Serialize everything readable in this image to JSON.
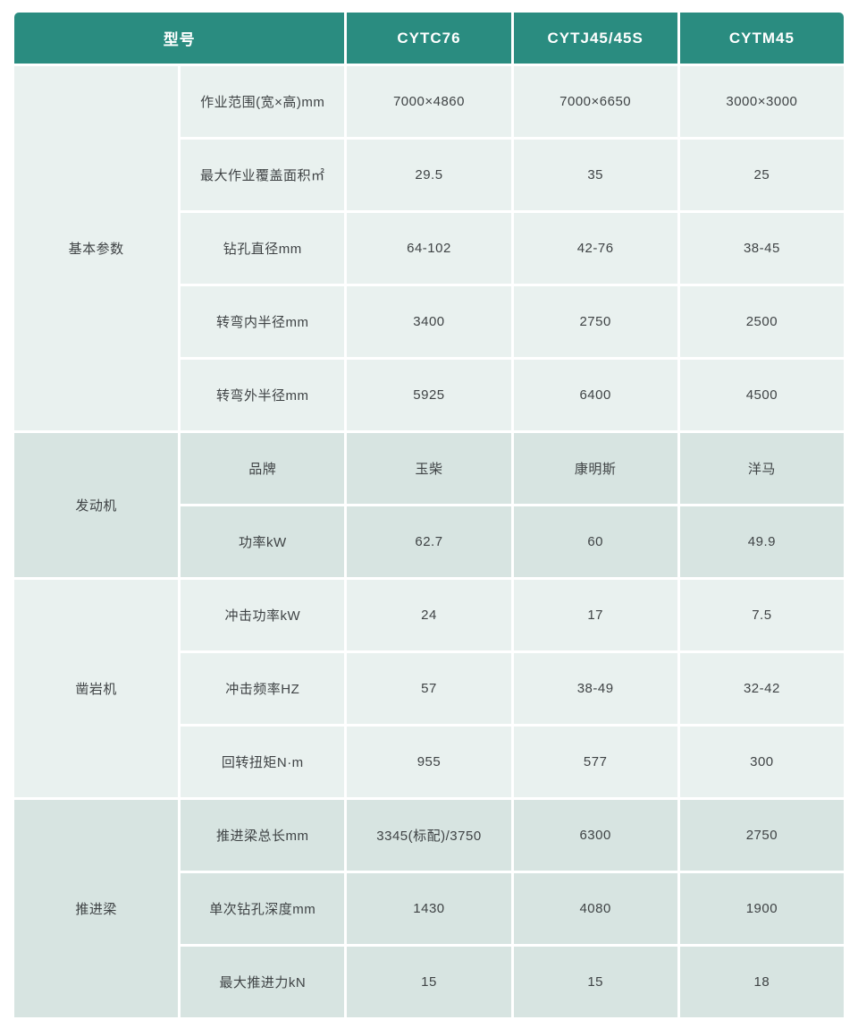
{
  "chart_data": {
    "type": "table",
    "title": "型号",
    "header": {
      "model_label": "型号",
      "models": [
        "CYTC76",
        "CYTJ45/45S",
        "CYTM45"
      ]
    },
    "sections": [
      {
        "category": "基本参数",
        "rows": [
          {
            "param": "作业范围(宽×高)mm",
            "values": [
              "7000×4860",
              "7000×6650",
              "3000×3000"
            ]
          },
          {
            "param": "最大作业覆盖面积㎡",
            "values": [
              "29.5",
              "35",
              "25"
            ]
          },
          {
            "param": "钻孔直径mm",
            "values": [
              "64-102",
              "42-76",
              "38-45"
            ]
          },
          {
            "param": "转弯内半径mm",
            "values": [
              "3400",
              "2750",
              "2500"
            ]
          },
          {
            "param": "转弯外半径mm",
            "values": [
              "5925",
              "6400",
              "4500"
            ]
          }
        ]
      },
      {
        "category": "发动机",
        "rows": [
          {
            "param": "品牌",
            "values": [
              "玉柴",
              "康明斯",
              "洋马"
            ]
          },
          {
            "param": "功率kW",
            "values": [
              "62.7",
              "60",
              "49.9"
            ]
          }
        ]
      },
      {
        "category": "凿岩机",
        "rows": [
          {
            "param": "冲击功率kW",
            "values": [
              "24",
              "17",
              "7.5"
            ]
          },
          {
            "param": "冲击频率HZ",
            "values": [
              "57",
              "38-49",
              "32-42"
            ]
          },
          {
            "param": "回转扭矩N·m",
            "values": [
              "955",
              "577",
              "300"
            ]
          }
        ]
      },
      {
        "category": "推进梁",
        "rows": [
          {
            "param": "推进梁总长mm",
            "values": [
              "3345(标配)/3750",
              "6300",
              "2750"
            ]
          },
          {
            "param": "单次钻孔深度mm",
            "values": [
              "1430",
              "4080",
              "1900"
            ]
          },
          {
            "param": "最大推进力kN",
            "values": [
              "15",
              "15",
              "18"
            ]
          }
        ]
      }
    ],
    "colors": {
      "header_bg": "#2a8c80",
      "header_text": "#ffffff",
      "section_light_bg": "#e9f1ef",
      "section_dark_bg": "#d7e4e1",
      "body_text": "#3f4345",
      "gridline": "#ffffff"
    }
  }
}
